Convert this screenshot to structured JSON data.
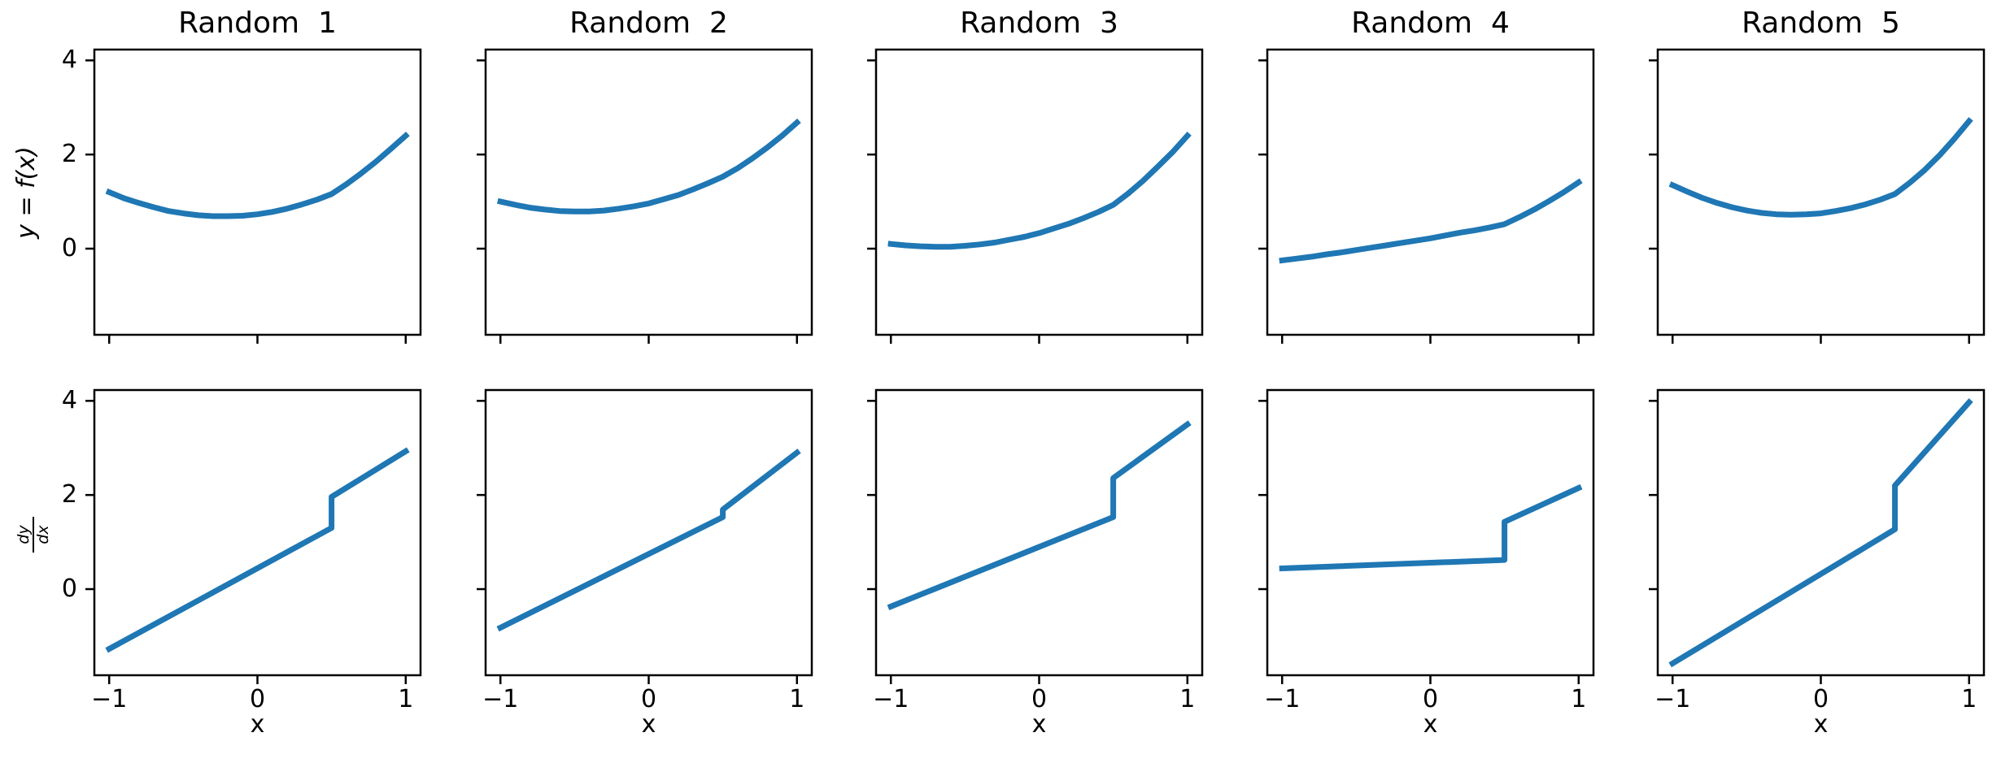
{
  "figure": {
    "xlabel": "x",
    "ylabel_top": "y = f(x)",
    "ylabel_bottom_numerator": "dy",
    "ylabel_bottom_denominator": "dx",
    "line_color": "#1f77b4",
    "axis_color": "#000000",
    "background": "#ffffff",
    "grid": false,
    "xlim": [
      -1.1,
      1.1
    ],
    "ylim": [
      -1.83,
      4.23
    ],
    "x_ticks": [
      {
        "v": -1,
        "label": "−1"
      },
      {
        "v": 0,
        "label": "0"
      },
      {
        "v": 1,
        "label": "1"
      }
    ],
    "y_ticks": [
      {
        "v": 0,
        "label": "0"
      },
      {
        "v": 2,
        "label": "2"
      },
      {
        "v": 4,
        "label": "4"
      }
    ]
  },
  "chart_data": [
    {
      "type": "line",
      "title": "Random  1",
      "f": {
        "x": [
          -1,
          -0.9,
          -0.8,
          -0.7,
          -0.6,
          -0.5,
          -0.4,
          -0.3,
          -0.2,
          -0.1,
          0,
          0.1,
          0.2,
          0.3,
          0.4,
          0.5,
          0.6,
          0.7,
          0.8,
          0.9,
          1
        ],
        "y": [
          1.2,
          1.07,
          0.97,
          0.88,
          0.8,
          0.75,
          0.71,
          0.69,
          0.69,
          0.7,
          0.73,
          0.78,
          0.85,
          0.94,
          1.04,
          1.16,
          1.37,
          1.6,
          1.85,
          2.12,
          2.4
        ]
      },
      "dfdx": {
        "x": [
          -1,
          0.5,
          0.5,
          1
        ],
        "y": [
          -1.27,
          1.3,
          1.96,
          2.93
        ]
      }
    },
    {
      "type": "line",
      "title": "Random  2",
      "f": {
        "x": [
          -1,
          -0.9,
          -0.8,
          -0.7,
          -0.6,
          -0.5,
          -0.4,
          -0.3,
          -0.2,
          -0.1,
          0,
          0.1,
          0.2,
          0.3,
          0.4,
          0.5,
          0.6,
          0.7,
          0.8,
          0.9,
          1
        ],
        "y": [
          1.0,
          0.93,
          0.87,
          0.83,
          0.8,
          0.79,
          0.79,
          0.81,
          0.85,
          0.9,
          0.96,
          1.05,
          1.14,
          1.26,
          1.39,
          1.53,
          1.71,
          1.92,
          2.15,
          2.4,
          2.68
        ]
      },
      "dfdx": {
        "x": [
          -1,
          0.5,
          0.5,
          1
        ],
        "y": [
          -0.82,
          1.53,
          1.69,
          2.9
        ]
      }
    },
    {
      "type": "line",
      "title": "Random  3",
      "f": {
        "x": [
          -1,
          -0.9,
          -0.8,
          -0.7,
          -0.6,
          -0.5,
          -0.4,
          -0.3,
          -0.2,
          -0.1,
          0,
          0.1,
          0.2,
          0.3,
          0.4,
          0.5,
          0.6,
          0.7,
          0.8,
          0.9,
          1
        ],
        "y": [
          0.1,
          0.07,
          0.05,
          0.04,
          0.04,
          0.06,
          0.09,
          0.13,
          0.19,
          0.25,
          0.33,
          0.43,
          0.53,
          0.65,
          0.78,
          0.93,
          1.17,
          1.44,
          1.74,
          2.05,
          2.4
        ]
      },
      "dfdx": {
        "x": [
          -1,
          0.5,
          0.5,
          1
        ],
        "y": [
          -0.37,
          1.53,
          2.36,
          3.5
        ]
      }
    },
    {
      "type": "line",
      "title": "Random  4",
      "f": {
        "x": [
          -1,
          -0.9,
          -0.8,
          -0.7,
          -0.6,
          -0.5,
          -0.4,
          -0.3,
          -0.2,
          -0.1,
          0,
          0.1,
          0.2,
          0.3,
          0.4,
          0.5,
          0.6,
          0.7,
          0.8,
          0.9,
          1
        ],
        "y": [
          -0.25,
          -0.21,
          -0.17,
          -0.12,
          -0.08,
          -0.03,
          0.02,
          0.07,
          0.12,
          0.17,
          0.22,
          0.28,
          0.34,
          0.39,
          0.45,
          0.52,
          0.67,
          0.83,
          1.01,
          1.2,
          1.41
        ]
      },
      "dfdx": {
        "x": [
          -1,
          0.5,
          0.5,
          1
        ],
        "y": [
          0.44,
          0.62,
          1.43,
          2.15
        ]
      }
    },
    {
      "type": "line",
      "title": "Random  5",
      "f": {
        "x": [
          -1,
          -0.9,
          -0.8,
          -0.7,
          -0.6,
          -0.5,
          -0.4,
          -0.3,
          -0.2,
          -0.1,
          0,
          0.1,
          0.2,
          0.3,
          0.4,
          0.5,
          0.6,
          0.7,
          0.8,
          0.9,
          1
        ],
        "y": [
          1.35,
          1.21,
          1.08,
          0.97,
          0.88,
          0.81,
          0.76,
          0.73,
          0.72,
          0.73,
          0.75,
          0.8,
          0.86,
          0.94,
          1.04,
          1.16,
          1.4,
          1.67,
          1.98,
          2.33,
          2.71
        ]
      },
      "dfdx": {
        "x": [
          -1,
          0.5,
          0.5,
          1
        ],
        "y": [
          -1.58,
          1.27,
          2.2,
          3.97
        ]
      }
    }
  ]
}
